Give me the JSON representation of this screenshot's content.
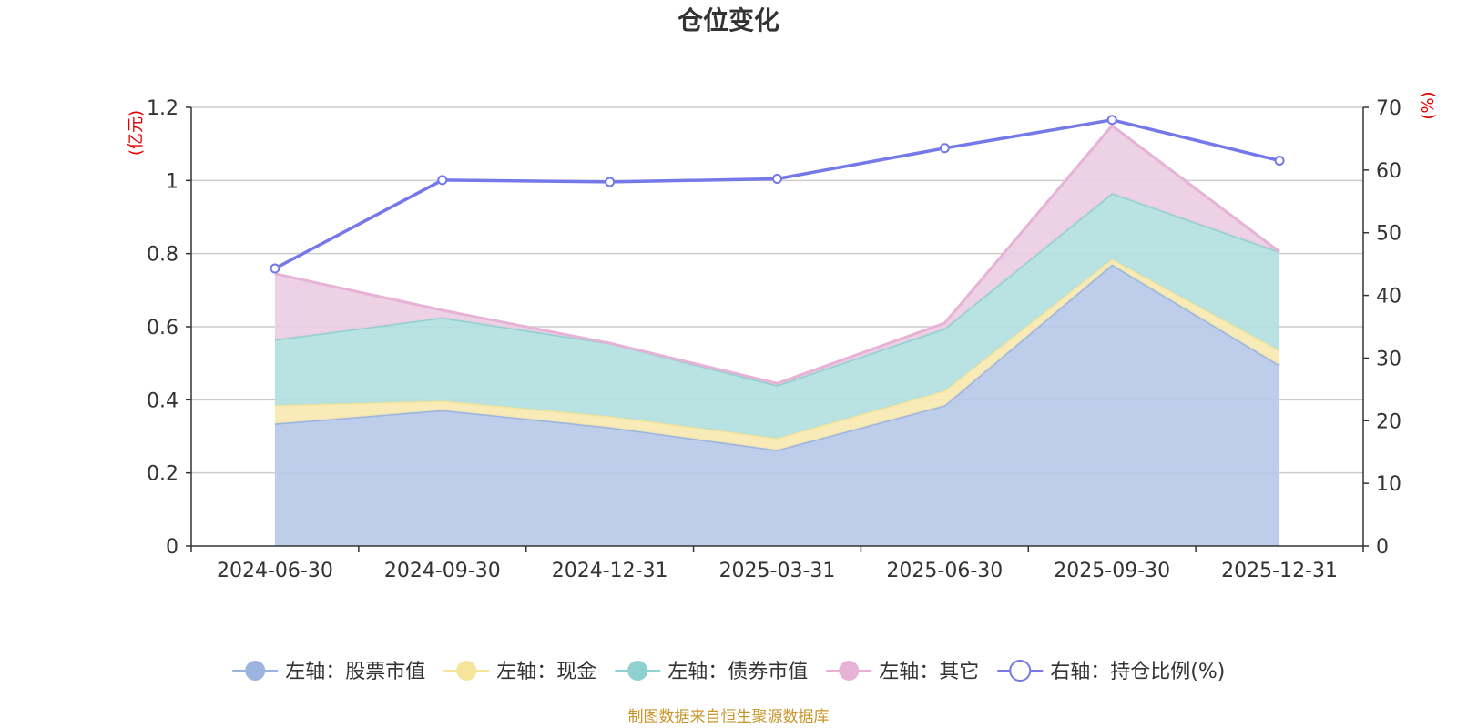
{
  "chart_data": {
    "type": "area",
    "title": "仓位变化",
    "categories": [
      "2024-06-30",
      "2024-09-30",
      "2024-12-31",
      "2025-03-31",
      "2025-06-30",
      "2025-09-30",
      "2025-12-31"
    ],
    "left_axis": {
      "unit": "(亿元)",
      "ylim": [
        0,
        1.2
      ],
      "ticks": [
        "0",
        "0.2",
        "0.4",
        "0.6",
        "0.8",
        "1",
        "1.2"
      ]
    },
    "right_axis": {
      "unit": "(%)",
      "ylim": [
        0,
        70
      ],
      "ticks": [
        "0",
        "10",
        "20",
        "30",
        "40",
        "50",
        "60",
        "70"
      ]
    },
    "stack_totals_note": "series values are individual amounts; areas are stacked",
    "series": [
      {
        "name": "左轴：股票市值",
        "axis": "left",
        "stack": true,
        "color": "#9bb3df",
        "fill": "#b7c9e8",
        "values": [
          0.335,
          0.372,
          0.325,
          0.263,
          0.385,
          0.77,
          0.495
        ]
      },
      {
        "name": "左轴：现金",
        "axis": "left",
        "stack": true,
        "color": "#f5e49a",
        "fill": "#f7e9b2",
        "values": [
          0.05,
          0.025,
          0.03,
          0.032,
          0.04,
          0.015,
          0.04
        ]
      },
      {
        "name": "左轴：债券市值",
        "axis": "left",
        "stack": true,
        "color": "#8fd0d0",
        "fill": "#b3dfdf",
        "values": [
          0.18,
          0.228,
          0.2,
          0.145,
          0.17,
          0.18,
          0.27
        ]
      },
      {
        "name": "左轴：其它",
        "axis": "left",
        "stack": true,
        "color": "#e6b2d6",
        "fill": "#ebcde3",
        "values": [
          0.18,
          0.02,
          0.0,
          0.005,
          0.015,
          0.185,
          0.0
        ]
      },
      {
        "name": "右轴：持仓比例(%)",
        "axis": "right",
        "type": "line",
        "color": "#7478e8",
        "values": [
          44.3,
          58.4,
          58.1,
          58.6,
          63.5,
          68.0,
          61.5
        ]
      }
    ],
    "legend_position": "bottom",
    "source": "制图数据来自恒生聚源数据库"
  }
}
